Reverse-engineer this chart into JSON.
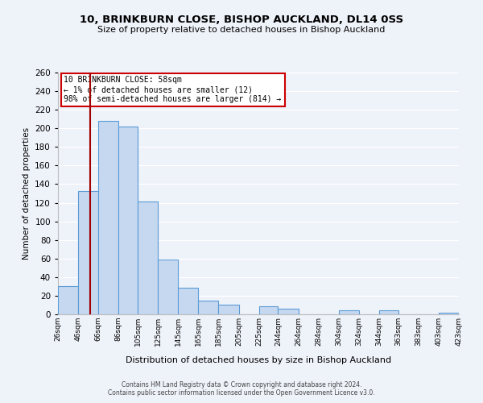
{
  "title": "10, BRINKBURN CLOSE, BISHOP AUCKLAND, DL14 0SS",
  "subtitle": "Size of property relative to detached houses in Bishop Auckland",
  "xlabel": "Distribution of detached houses by size in Bishop Auckland",
  "ylabel": "Number of detached properties",
  "bar_color": "#c5d8f0",
  "bar_edge_color": "#5b9bd5",
  "background_color": "#eef2f9",
  "grid_color": "#ffffff",
  "vline_x": 58,
  "vline_color": "#a00000",
  "annotation_title": "10 BRINKBURN CLOSE: 58sqm",
  "annotation_line1": "← 1% of detached houses are smaller (12)",
  "annotation_line2": "98% of semi-detached houses are larger (814) →",
  "annotation_box_color": "#ffffff",
  "annotation_box_edge": "#cc0000",
  "footer1": "Contains HM Land Registry data © Crown copyright and database right 2024.",
  "footer2": "Contains public sector information licensed under the Open Government Licence v3.0.",
  "bin_edges": [
    26,
    46,
    66,
    86,
    105,
    125,
    145,
    165,
    185,
    205,
    225,
    244,
    264,
    284,
    304,
    324,
    344,
    363,
    383,
    403,
    423
  ],
  "bin_labels": [
    "26sqm",
    "46sqm",
    "66sqm",
    "86sqm",
    "105sqm",
    "125sqm",
    "145sqm",
    "165sqm",
    "185sqm",
    "205sqm",
    "225sqm",
    "244sqm",
    "264sqm",
    "284sqm",
    "304sqm",
    "324sqm",
    "344sqm",
    "363sqm",
    "383sqm",
    "403sqm",
    "423sqm"
  ],
  "counts": [
    30,
    133,
    208,
    202,
    121,
    59,
    29,
    15,
    10,
    0,
    9,
    6,
    0,
    0,
    4,
    0,
    4,
    0,
    0,
    2
  ],
  "ylim": [
    0,
    260
  ],
  "yticks": [
    0,
    20,
    40,
    60,
    80,
    100,
    120,
    140,
    160,
    180,
    200,
    220,
    240,
    260
  ]
}
